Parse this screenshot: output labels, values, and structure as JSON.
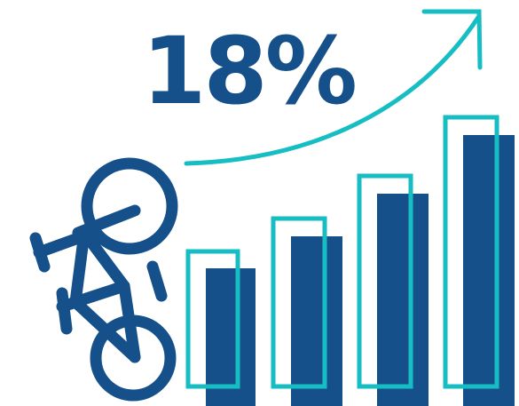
{
  "headline": {
    "text": "18%"
  },
  "colors": {
    "primary_blue": "#15508a",
    "teal": "#16bec3",
    "background": "#ffffff"
  },
  "icons": {
    "bicycle": "bicycle-icon",
    "growth_arrow": "trend-arrow-icon"
  },
  "bars": {
    "count": 4,
    "relative_heights_filled": [
      0.46,
      0.61,
      0.77,
      0.96
    ],
    "relative_heights_outline": [
      0.54,
      0.69,
      0.85,
      1.0
    ]
  }
}
